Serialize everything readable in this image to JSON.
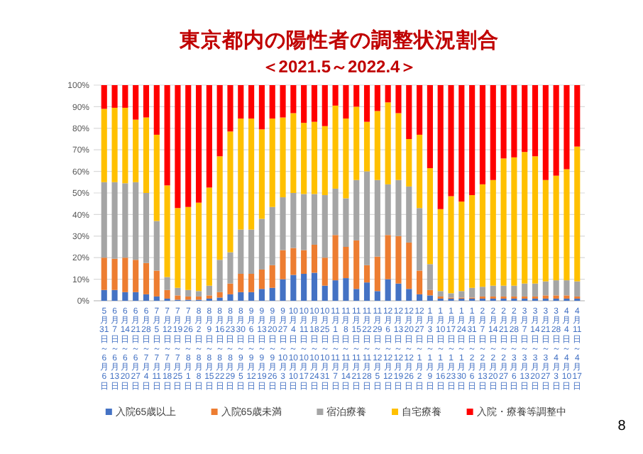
{
  "chart_data": {
    "type": "bar",
    "title": "東京都内の陽性者の調整状況割合",
    "subtitle": "＜2021.5～2022.4＞",
    "stacked": true,
    "grid": "y",
    "legend": "bottom",
    "ylim": [
      0,
      100
    ],
    "yticks": [
      {
        "value": 0,
        "label": "0%"
      },
      {
        "value": 10,
        "label": "10%"
      },
      {
        "value": 20,
        "label": "20%"
      },
      {
        "value": 30,
        "label": "30%"
      },
      {
        "value": 40,
        "label": "40%"
      },
      {
        "value": 50,
        "label": "50%"
      },
      {
        "value": 60,
        "label": "60%"
      },
      {
        "value": 70,
        "label": "70%"
      },
      {
        "value": 80,
        "label": "80%"
      },
      {
        "value": 90,
        "label": "90%"
      },
      {
        "value": 100,
        "label": "100%"
      }
    ],
    "categories": [
      "5月31日～6月6日",
      "6月7日～6月13日",
      "6月14日～6月20日",
      "6月21日～6月27日",
      "6月28日～7月4日",
      "7月5日～7月11日",
      "7月12日～7月18日",
      "7月19日～7月25日",
      "7月26日～8月1日",
      "8月2日～8月8日",
      "8月9日～8月15日",
      "8月16日～8月22日",
      "8月23日～8月29日",
      "8月30日～9月5日",
      "9月6日～9月12日",
      "9月13日～9月19日",
      "9月20日～9月26日",
      "9月27日～10月3日",
      "10月4日～10月10日",
      "10月11日～10月17日",
      "10月18日～10月24日",
      "10月25日～10月31日",
      "11月1日～11月7日",
      "11月8日～11月14日",
      "11月15日～11月21日",
      "11月22日～11月28日",
      "11月29日～12月5日",
      "12月6日～12月12日",
      "12月13日～12月19日",
      "12月20日～12月26日",
      "12月27日～1月2日",
      "1月3日～1月9日",
      "1月10日～1月16日",
      "1月17日～1月23日",
      "1月24日～1月30日",
      "1月31日～2月6日",
      "2月7日～2月13日",
      "2月14日～2月20日",
      "2月21日～2月27日",
      "2月28日～3月6日",
      "3月7日～3月13日",
      "3月14日～3月20日",
      "3月21日～3月27日",
      "3月28日～4月3日",
      "4月4日～4月10日",
      "4月11日～4月17日"
    ],
    "series": [
      {
        "name": "入院65歳以上",
        "color": "#4472c4",
        "values": [
          5,
          5,
          4,
          4,
          3,
          2,
          1,
          0.5,
          0.5,
          0.5,
          1,
          1.5,
          3,
          4,
          4,
          5.5,
          6,
          10,
          12,
          12.5,
          13,
          7,
          9.5,
          10.5,
          5.5,
          8.5,
          4.5,
          10,
          8,
          5.5,
          3,
          2.5,
          1,
          1,
          1,
          1,
          1,
          1,
          1,
          1,
          1,
          1,
          1,
          1,
          1,
          1
        ]
      },
      {
        "name": "入院65歳未満",
        "color": "#ed7d31",
        "values": [
          15,
          14.5,
          16,
          15,
          14.5,
          12,
          4,
          2,
          1.5,
          1.5,
          1.5,
          2.5,
          5,
          8.5,
          8.5,
          9,
          10.5,
          13.5,
          12.5,
          11,
          13,
          13,
          21,
          14.5,
          22.5,
          8,
          16,
          20.5,
          22,
          21.5,
          11,
          2.5,
          1,
          0.5,
          0.5,
          0.5,
          1,
          1,
          1,
          1,
          1,
          1,
          1.5,
          1.5,
          1.5,
          1
        ]
      },
      {
        "name": "宿泊療養",
        "color": "#a5a5a5",
        "values": [
          35,
          35.5,
          34.5,
          36,
          32.5,
          23,
          6,
          3.5,
          3,
          2.5,
          4.5,
          15,
          14.5,
          20.5,
          20.5,
          23.5,
          27,
          24.5,
          25.5,
          26,
          23.5,
          29,
          21.5,
          22.5,
          28,
          43.5,
          35.5,
          23.5,
          26,
          26,
          29,
          12,
          2.5,
          2,
          3,
          4.5,
          4.5,
          5,
          5,
          5,
          6,
          6,
          6.5,
          7,
          7,
          7
        ]
      },
      {
        "name": "自宅療養",
        "color": "#ffc000",
        "values": [
          34,
          34.5,
          35,
          29,
          35,
          40,
          42.5,
          37,
          38.5,
          41,
          45.5,
          48,
          56,
          51.5,
          51.5,
          41.5,
          41,
          37,
          37,
          33,
          33.5,
          32,
          38.5,
          37,
          34,
          23,
          32,
          38,
          31,
          22,
          34,
          44.5,
          38,
          45,
          41.5,
          43,
          47.5,
          49,
          59,
          59.5,
          61,
          59,
          47,
          48.5,
          51.5,
          62.5
        ]
      },
      {
        "name": "入院・療養等調整中",
        "color": "#ff0000",
        "values": [
          11,
          10.5,
          10.5,
          16,
          15,
          23,
          46.5,
          57,
          56.5,
          54.5,
          47.5,
          33,
          21.5,
          15.5,
          15.5,
          20.5,
          15.5,
          15,
          13,
          17.5,
          17,
          19,
          9.5,
          15.5,
          10,
          17,
          12,
          8,
          13,
          25,
          23,
          38.5,
          57.5,
          51.5,
          54,
          51,
          46,
          44,
          34,
          33.5,
          31,
          33,
          44,
          42,
          39,
          28.5
        ]
      }
    ],
    "annotations": [
      "8"
    ]
  }
}
